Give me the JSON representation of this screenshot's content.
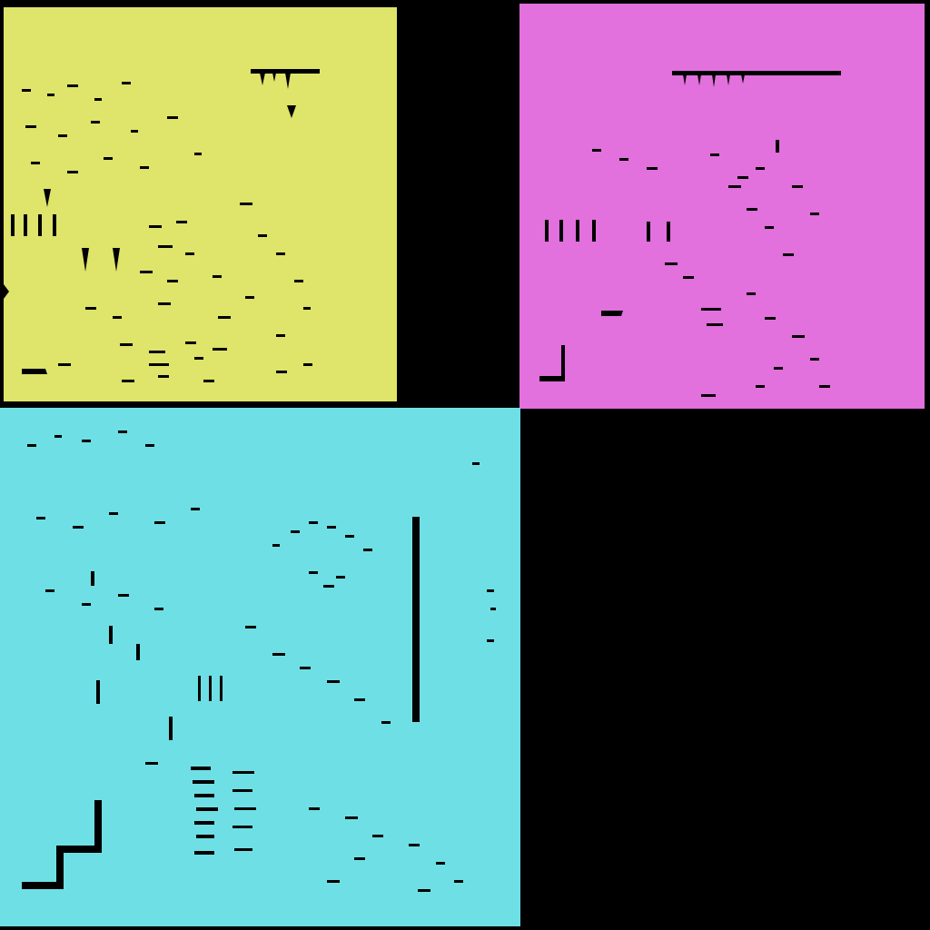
{
  "background": "#000000",
  "panels": [
    {
      "id": "yellow",
      "color": "#dfe46a",
      "label": ""
    },
    {
      "id": "magenta",
      "color": "#e270dd",
      "label": ""
    },
    {
      "id": "cyan",
      "color": "#6ee0e5",
      "label": ""
    }
  ],
  "mark_color": "#000000"
}
